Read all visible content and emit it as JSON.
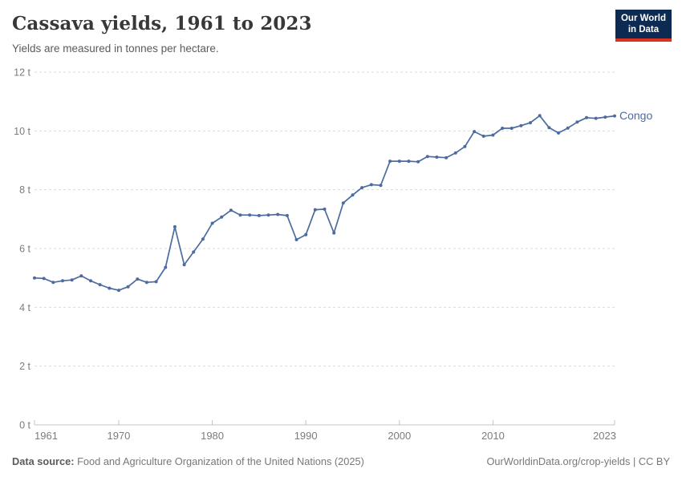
{
  "header": {
    "title": "Cassava yields, 1961 to 2023",
    "subtitle": "Yields are measured in tonnes per hectare.",
    "logo": {
      "line1": "Our World",
      "line2": "in Data"
    }
  },
  "colors": {
    "series_blue": "#4C6BA0",
    "gridline": "#dcdcdc",
    "axis_line": "#c4c4c4",
    "tick_label": "#7c7c7c",
    "logo_bg": "#0d2b52",
    "logo_red": "#d9321f"
  },
  "chart_data": {
    "type": "line",
    "title": "Cassava yields, 1961 to 2023",
    "subtitle": "Yields are measured in tonnes per hectare.",
    "unit": "tonnes per hectare",
    "xlim": [
      1961,
      2023
    ],
    "ylim": [
      0,
      12
    ],
    "grid": "horizontal-dashed",
    "legend_position": "end-of-line",
    "x_ticks": [
      1961,
      1970,
      1980,
      1990,
      2000,
      2010,
      2023
    ],
    "y_ticks": [
      0,
      2,
      4,
      6,
      8,
      10,
      12
    ],
    "y_tick_suffix": " t",
    "x": [
      1961,
      1962,
      1963,
      1964,
      1965,
      1966,
      1967,
      1968,
      1969,
      1970,
      1971,
      1972,
      1973,
      1974,
      1975,
      1976,
      1977,
      1978,
      1979,
      1980,
      1981,
      1982,
      1983,
      1984,
      1985,
      1986,
      1987,
      1988,
      1989,
      1990,
      1991,
      1992,
      1993,
      1994,
      1995,
      1996,
      1997,
      1998,
      1999,
      2000,
      2001,
      2002,
      2003,
      2004,
      2005,
      2006,
      2007,
      2008,
      2009,
      2010,
      2011,
      2012,
      2013,
      2014,
      2015,
      2016,
      2017,
      2018,
      2019,
      2020,
      2021,
      2022,
      2023
    ],
    "series": [
      {
        "name": "Congo",
        "color": "#4C6BA0",
        "values": [
          5.0,
          4.98,
          4.85,
          4.9,
          4.93,
          5.07,
          4.9,
          4.77,
          4.65,
          4.58,
          4.7,
          4.96,
          4.85,
          4.87,
          5.36,
          6.74,
          5.45,
          5.88,
          6.32,
          6.86,
          7.07,
          7.3,
          7.14,
          7.14,
          7.12,
          7.14,
          7.16,
          7.12,
          6.3,
          6.47,
          7.32,
          7.34,
          6.53,
          7.55,
          7.82,
          8.07,
          8.17,
          8.15,
          8.97,
          8.97,
          8.97,
          8.95,
          9.13,
          9.11,
          9.09,
          9.25,
          9.47,
          9.98,
          9.82,
          9.86,
          10.09,
          10.09,
          10.18,
          10.28,
          10.52,
          10.11,
          9.93,
          10.1,
          10.3,
          10.45,
          10.43,
          10.47,
          10.51
        ]
      }
    ]
  },
  "footer": {
    "datasource_label": "Data source:",
    "datasource_text": "Food and Agriculture Organization of the United Nations (2025)",
    "credit": "OurWorldinData.org/crop-yields | CC BY"
  }
}
